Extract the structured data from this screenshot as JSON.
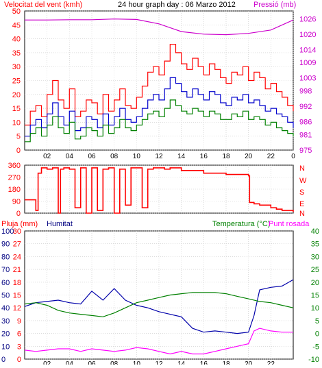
{
  "header": {
    "wind_label": "Velocitat del vent (kmh)",
    "title": "24 hour graph day : 06 Marzo 2012",
    "pressure_label": "Pressió (mb)"
  },
  "bottom_header": {
    "rain_label": "Pluja (mm)",
    "humidity_label": "Humitat",
    "temp_label": "Temperatura (°C)",
    "dew_label": "Punt rosada"
  },
  "direction_labels": [
    "N",
    "W",
    "S",
    "E",
    "N"
  ],
  "colors": {
    "wind": "#ff0000",
    "gust": "#ff0000",
    "avg_wind": "#0000cc",
    "green": "#008000",
    "pressure": "#cc00cc",
    "direction": "#ff0000",
    "humidity": "#0000aa",
    "temperature": "#008000",
    "dew_point": "#ff00ff",
    "axis_text_red": "#ff0000",
    "axis_text_blue": "#000080",
    "axis_text_green": "#008000"
  },
  "chart_data": [
    {
      "type": "line",
      "panel": "wind-pressure",
      "title": "24 hour graph day : 06 Marzo 2012",
      "ylabel": "Velocitat del vent (kmh)",
      "y2label": "Pressió (mb)",
      "ylim": [
        0,
        50
      ],
      "y2lim": [
        975,
        1029
      ],
      "yticks": [
        0,
        5,
        10,
        15,
        20,
        25,
        30,
        35,
        40,
        45,
        50
      ],
      "y2ticks": [
        975,
        981,
        986,
        992,
        998,
        1003,
        1009,
        1014,
        1020,
        1026
      ],
      "x_ticks": [
        "02",
        "04",
        "06",
        "08",
        "10",
        "12",
        "14",
        "16",
        "18",
        "20",
        "22",
        "0"
      ],
      "xlim": [
        0,
        24
      ],
      "grid": true,
      "series": [
        {
          "name": "gust",
          "kind": "gust",
          "x": [
            0,
            0.5,
            1,
            1.5,
            2,
            2.5,
            3,
            3.5,
            4,
            4.5,
            5,
            5.5,
            6,
            6.5,
            7,
            7.5,
            8,
            8.5,
            9,
            9.5,
            10,
            10.5,
            11,
            11.5,
            12,
            12.5,
            13,
            13.5,
            14,
            14.5,
            15,
            15.5,
            16,
            16.5,
            17,
            17.5,
            18,
            18.5,
            19,
            19.5,
            20,
            20.5,
            21,
            21.5,
            22,
            22.5,
            23,
            23.5,
            24
          ],
          "y": [
            9,
            14,
            16,
            12,
            20,
            25,
            18,
            15,
            22,
            12,
            14,
            18,
            17,
            13,
            20,
            14,
            18,
            22,
            16,
            15,
            19,
            23,
            28,
            30,
            27,
            32,
            38,
            35,
            31,
            29,
            33,
            30,
            27,
            31,
            29,
            26,
            24,
            28,
            27,
            30,
            25,
            28,
            26,
            22,
            24,
            21,
            19,
            16,
            14
          ]
        },
        {
          "name": "avg",
          "kind": "avg",
          "x": [
            0,
            0.5,
            1,
            1.5,
            2,
            2.5,
            3,
            3.5,
            4,
            4.5,
            5,
            5.5,
            6,
            6.5,
            7,
            7.5,
            8,
            8.5,
            9,
            9.5,
            10,
            10.5,
            11,
            11.5,
            12,
            12.5,
            13,
            13.5,
            14,
            14.5,
            15,
            15.5,
            16,
            16.5,
            17,
            17.5,
            18,
            18.5,
            19,
            19.5,
            20,
            20.5,
            21,
            21.5,
            22,
            22.5,
            23,
            23.5,
            24
          ],
          "y": [
            5,
            9,
            11,
            8,
            13,
            17,
            12,
            9,
            14,
            7,
            8,
            12,
            11,
            8,
            13,
            9,
            12,
            15,
            11,
            10,
            12,
            15,
            18,
            20,
            18,
            22,
            26,
            24,
            21,
            19,
            22,
            20,
            18,
            21,
            20,
            17,
            16,
            19,
            18,
            20,
            17,
            18,
            16,
            14,
            15,
            13,
            12,
            10,
            8
          ]
        },
        {
          "name": "green",
          "kind": "green",
          "x": [
            0,
            0.5,
            1,
            1.5,
            2,
            2.5,
            3,
            3.5,
            4,
            4.5,
            5,
            5.5,
            6,
            6.5,
            7,
            7.5,
            8,
            8.5,
            9,
            9.5,
            10,
            10.5,
            11,
            11.5,
            12,
            12.5,
            13,
            13.5,
            14,
            14.5,
            15,
            15.5,
            16,
            16.5,
            17,
            17.5,
            18,
            18.5,
            19,
            19.5,
            20,
            20.5,
            21,
            21.5,
            22,
            22.5,
            23,
            23.5,
            24
          ],
          "y": [
            3,
            6,
            8,
            5,
            9,
            12,
            8,
            6,
            10,
            4,
            5,
            8,
            7,
            5,
            9,
            6,
            8,
            11,
            8,
            7,
            9,
            11,
            13,
            14,
            12,
            15,
            18,
            16,
            14,
            13,
            15,
            14,
            12,
            14,
            13,
            11,
            11,
            13,
            12,
            14,
            11,
            12,
            11,
            9,
            10,
            8,
            7,
            6,
            5
          ]
        },
        {
          "name": "pressure",
          "kind": "pressure",
          "x": [
            0,
            2,
            4,
            6,
            8,
            10,
            12,
            14,
            16,
            18,
            20,
            22,
            24
          ],
          "y": [
            1025.5,
            1025.5,
            1025.6,
            1025.6,
            1025.9,
            1025.7,
            1024,
            1021,
            1020,
            1019.8,
            1020.3,
            1021.6,
            1025.5
          ]
        }
      ]
    },
    {
      "type": "line",
      "panel": "wind-direction",
      "ylabel": "",
      "ylim": [
        0,
        360
      ],
      "yticks": [
        0,
        90,
        180,
        270,
        360
      ],
      "xlim": [
        0,
        24
      ],
      "series": [
        {
          "name": "direction",
          "x": [
            0,
            0.5,
            1,
            1.2,
            1.5,
            2,
            2.5,
            3,
            3.2,
            3.5,
            4,
            4.5,
            5,
            5.5,
            6,
            6.5,
            7,
            7.5,
            8,
            8.5,
            9,
            9.5,
            10,
            10.5,
            11,
            11.5,
            12,
            12.5,
            13,
            13.5,
            14,
            15,
            16,
            17,
            18,
            19,
            20,
            20.1,
            20.5,
            21,
            21.5,
            22,
            22.5,
            23,
            24
          ],
          "y": [
            100,
            100,
            20,
            300,
            340,
            330,
            340,
            0,
            330,
            340,
            330,
            40,
            340,
            0,
            340,
            20,
            330,
            340,
            0,
            330,
            60,
            340,
            340,
            40,
            330,
            340,
            340,
            330,
            340,
            340,
            320,
            320,
            300,
            300,
            290,
            290,
            280,
            80,
            70,
            60,
            60,
            40,
            30,
            20,
            10
          ]
        }
      ]
    },
    {
      "type": "line",
      "panel": "temperature-humidity",
      "ylabel": "Pluja (mm)",
      "y2label": "Temperatura (°C)",
      "ylim": [
        0,
        100
      ],
      "yticks_humidity": [
        0,
        10,
        20,
        30,
        40,
        50,
        60,
        70,
        80,
        90,
        100
      ],
      "yticks_rain": [
        0,
        3,
        6,
        9,
        12,
        15,
        18,
        21,
        24,
        27,
        30
      ],
      "y2lim": [
        -10,
        40
      ],
      "y2ticks": [
        -10,
        -5,
        0,
        5,
        10,
        15,
        20,
        25,
        30,
        35,
        40
      ],
      "x_ticks": [
        "02",
        "04",
        "06",
        "08",
        "10",
        "12",
        "14",
        "16",
        "18",
        "20",
        "22"
      ],
      "xlim": [
        0,
        24
      ],
      "series": [
        {
          "name": "Humitat",
          "x": [
            0,
            1,
            2,
            3,
            4,
            5,
            6,
            7,
            8,
            9,
            10,
            11,
            12,
            13,
            14,
            15,
            16,
            17,
            18,
            19,
            20,
            20.5,
            21,
            22,
            23,
            24
          ],
          "y": [
            41,
            44,
            45,
            46,
            44,
            43,
            53,
            46,
            55,
            46,
            42,
            40,
            37,
            35,
            33,
            24,
            21,
            22,
            21,
            20,
            21,
            34,
            54,
            56,
            57,
            62
          ]
        },
        {
          "name": "Temperatura",
          "x": [
            0,
            1,
            2,
            3,
            4,
            5,
            6,
            7,
            8,
            9,
            10,
            11,
            12,
            13,
            14,
            15,
            16,
            17,
            18,
            19,
            20,
            21,
            22,
            23,
            24
          ],
          "y": [
            11.5,
            12,
            11,
            9,
            8,
            7.5,
            7,
            6.5,
            8,
            10,
            12,
            13,
            14,
            15,
            15.5,
            16,
            16,
            16,
            15.5,
            14.5,
            13.5,
            12.5,
            12,
            11,
            10
          ]
        },
        {
          "name": "Punt rosada",
          "x": [
            0,
            1,
            2,
            3,
            4,
            5,
            6,
            7,
            8,
            9,
            10,
            11,
            12,
            13,
            14,
            15,
            16,
            17,
            18,
            19,
            20,
            20.5,
            21,
            22,
            23,
            24
          ],
          "y": [
            -6.5,
            -7,
            -6.5,
            -6,
            -6,
            -7,
            -6,
            -6.5,
            -7,
            -6.5,
            -5.5,
            -6,
            -7,
            -8,
            -7,
            -8,
            -8,
            -7,
            -6,
            -5,
            -4,
            1,
            2,
            1,
            0.5,
            0.5
          ]
        }
      ]
    }
  ]
}
